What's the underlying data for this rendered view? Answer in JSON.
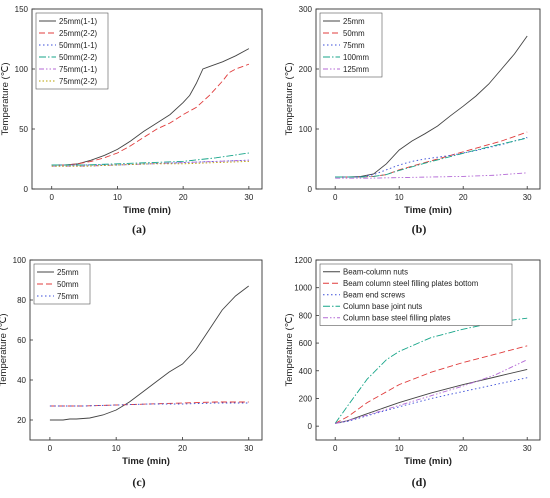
{
  "chart_data": [
    {
      "panel_label": "(a)",
      "type": "line",
      "xlabel": "Time (min)",
      "ylabel": "Temperature (℃)",
      "xlim": [
        -3,
        32
      ],
      "ylim": [
        0,
        150
      ],
      "xticks": [
        0,
        10,
        20,
        30
      ],
      "yticks": [
        0,
        50,
        100,
        150
      ],
      "legend_position": "top-left",
      "series": [
        {
          "name": "25mm(1-1)",
          "color": "#444444",
          "dash": "solid",
          "x": [
            0,
            2,
            4,
            6,
            8,
            10,
            12,
            14,
            16,
            18,
            20,
            21,
            22,
            23,
            24,
            26,
            28,
            30
          ],
          "y": [
            20,
            20,
            21,
            24,
            28,
            33,
            40,
            48,
            55,
            62,
            72,
            78,
            88,
            100,
            102,
            106,
            111,
            117
          ]
        },
        {
          "name": "25mm(2-2)",
          "color": "#e03c3c",
          "dash": "6,3",
          "x": [
            0,
            2,
            4,
            6,
            8,
            10,
            12,
            14,
            16,
            18,
            20,
            22,
            24,
            26,
            27,
            28,
            30
          ],
          "y": [
            20,
            20,
            21,
            23,
            26,
            30,
            36,
            43,
            50,
            55,
            62,
            68,
            78,
            90,
            97,
            100,
            104
          ]
        },
        {
          "name": "50mm(1-1)",
          "color": "#3a4dd8",
          "dash": "1.5,2.5",
          "x": [
            0,
            5,
            10,
            15,
            20,
            25,
            30
          ],
          "y": [
            20,
            20,
            20,
            21,
            22,
            23,
            24
          ]
        },
        {
          "name": "50mm(2-2)",
          "color": "#17a589",
          "dash": "7,2,1.5,2",
          "x": [
            0,
            5,
            10,
            15,
            20,
            25,
            30
          ],
          "y": [
            20,
            20,
            21,
            22,
            23,
            26,
            30
          ]
        },
        {
          "name": "75mm(1-1)",
          "color": "#b46ad6",
          "dash": "5,2,1.5,2,1.5,2",
          "x": [
            0,
            5,
            10,
            15,
            20,
            25,
            30
          ],
          "y": [
            19,
            19,
            20,
            21,
            22,
            23,
            24
          ]
        },
        {
          "name": "75mm(2-2)",
          "color": "#b8a000",
          "dash": "1.5,2",
          "x": [
            0,
            5,
            10,
            15,
            20,
            25,
            30
          ],
          "y": [
            19,
            19,
            20,
            21,
            21,
            22,
            23
          ]
        }
      ]
    },
    {
      "panel_label": "(b)",
      "type": "line",
      "xlabel": "Time (min)",
      "ylabel": "Temperature (℃)",
      "xlim": [
        -3,
        32
      ],
      "ylim": [
        0,
        300
      ],
      "xticks": [
        0,
        10,
        20,
        30
      ],
      "yticks": [
        0,
        100,
        200,
        300
      ],
      "legend_position": "top-left",
      "series": [
        {
          "name": "25mm",
          "color": "#444444",
          "dash": "solid",
          "x": [
            0,
            2,
            4,
            6,
            8,
            10,
            12,
            14,
            16,
            18,
            20,
            22,
            24,
            26,
            28,
            30
          ],
          "y": [
            20,
            20,
            21,
            25,
            42,
            65,
            80,
            92,
            105,
            122,
            138,
            155,
            175,
            200,
            225,
            255
          ]
        },
        {
          "name": "50mm",
          "color": "#e03c3c",
          "dash": "6,3",
          "x": [
            0,
            4,
            6,
            8,
            10,
            14,
            18,
            22,
            26,
            30
          ],
          "y": [
            20,
            20,
            21,
            24,
            32,
            44,
            56,
            68,
            80,
            95
          ]
        },
        {
          "name": "75mm",
          "color": "#3a4dd8",
          "dash": "1.5,2.5",
          "x": [
            0,
            4,
            6,
            8,
            10,
            12,
            14,
            18,
            22,
            26,
            30
          ],
          "y": [
            20,
            20,
            24,
            32,
            40,
            46,
            50,
            56,
            64,
            74,
            86
          ]
        },
        {
          "name": "100mm",
          "color": "#17a589",
          "dash": "7,2,1.5,2",
          "x": [
            0,
            4,
            6,
            8,
            10,
            14,
            18,
            22,
            26,
            30
          ],
          "y": [
            20,
            20,
            21,
            24,
            31,
            43,
            54,
            65,
            75,
            85
          ]
        },
        {
          "name": "125mm",
          "color": "#b46ad6",
          "dash": "5,2,1.5,2,1.5,2",
          "x": [
            0,
            5,
            10,
            15,
            20,
            25,
            30
          ],
          "y": [
            18,
            18,
            19,
            20,
            21,
            23,
            27
          ]
        }
      ]
    },
    {
      "panel_label": "(c)",
      "type": "line",
      "xlabel": "Time (min)",
      "ylabel": "Temperature (℃)",
      "xlim": [
        -3,
        32
      ],
      "ylim": [
        10,
        100
      ],
      "xticks": [
        0,
        10,
        20,
        30
      ],
      "yticks": [
        20,
        40,
        60,
        80,
        100
      ],
      "legend_position": "top-left",
      "series": [
        {
          "name": "25mm",
          "color": "#444444",
          "dash": "solid",
          "x": [
            0,
            2,
            3,
            4,
            6,
            8,
            10,
            12,
            14,
            16,
            18,
            19,
            20,
            22,
            24,
            26,
            28,
            30
          ],
          "y": [
            20,
            20,
            20.5,
            20.5,
            21,
            22.5,
            25,
            29,
            34,
            39,
            44,
            46,
            48,
            55,
            65,
            75,
            82,
            87
          ]
        },
        {
          "name": "50mm",
          "color": "#e03c3c",
          "dash": "6,3",
          "x": [
            0,
            5,
            10,
            15,
            20,
            25,
            30
          ],
          "y": [
            27,
            27,
            27.5,
            28,
            28.5,
            29,
            29
          ]
        },
        {
          "name": "75mm",
          "color": "#3a4dd8",
          "dash": "1.5,2.5",
          "x": [
            0,
            5,
            10,
            15,
            20,
            25,
            30
          ],
          "y": [
            27,
            27,
            27.5,
            28,
            28,
            28.5,
            28.5
          ]
        }
      ]
    },
    {
      "panel_label": "(d)",
      "type": "line",
      "xlabel": "Time (min)",
      "ylabel": "Temperature (℃)",
      "xlim": [
        -3,
        32
      ],
      "ylim": [
        -100,
        1200
      ],
      "xticks": [
        0,
        10,
        20,
        30
      ],
      "yticks": [
        0,
        200,
        400,
        600,
        800,
        1000,
        1200
      ],
      "legend_position": "top-left",
      "series": [
        {
          "name": "Beam-column nuts",
          "color": "#444444",
          "dash": "solid",
          "x": [
            0,
            2,
            5,
            10,
            15,
            20,
            25,
            30
          ],
          "y": [
            20,
            40,
            90,
            170,
            240,
            300,
            355,
            410
          ]
        },
        {
          "name": "Beam column steel filling plates bottom",
          "color": "#e03c3c",
          "dash": "6,3",
          "x": [
            0,
            2,
            5,
            10,
            15,
            20,
            25,
            30
          ],
          "y": [
            20,
            70,
            170,
            300,
            390,
            460,
            520,
            580
          ]
        },
        {
          "name": "Beam end screws",
          "color": "#3a4dd8",
          "dash": "1.5,2.5",
          "x": [
            0,
            2,
            5,
            10,
            15,
            20,
            25,
            30
          ],
          "y": [
            20,
            35,
            75,
            140,
            200,
            250,
            300,
            350
          ]
        },
        {
          "name": "Column base joint nuts",
          "color": "#17a589",
          "dash": "7,2,1.5,2",
          "x": [
            0,
            2,
            5,
            8,
            10,
            15,
            20,
            25,
            30
          ],
          "y": [
            20,
            150,
            340,
            480,
            540,
            640,
            700,
            750,
            780
          ]
        },
        {
          "name": "Column base steel filling plates",
          "color": "#b46ad6",
          "dash": "5,2,1.5,2,1.5,2",
          "x": [
            0,
            2,
            5,
            10,
            15,
            20,
            25,
            30
          ],
          "y": [
            20,
            40,
            80,
            150,
            220,
            290,
            370,
            480
          ]
        }
      ]
    }
  ]
}
